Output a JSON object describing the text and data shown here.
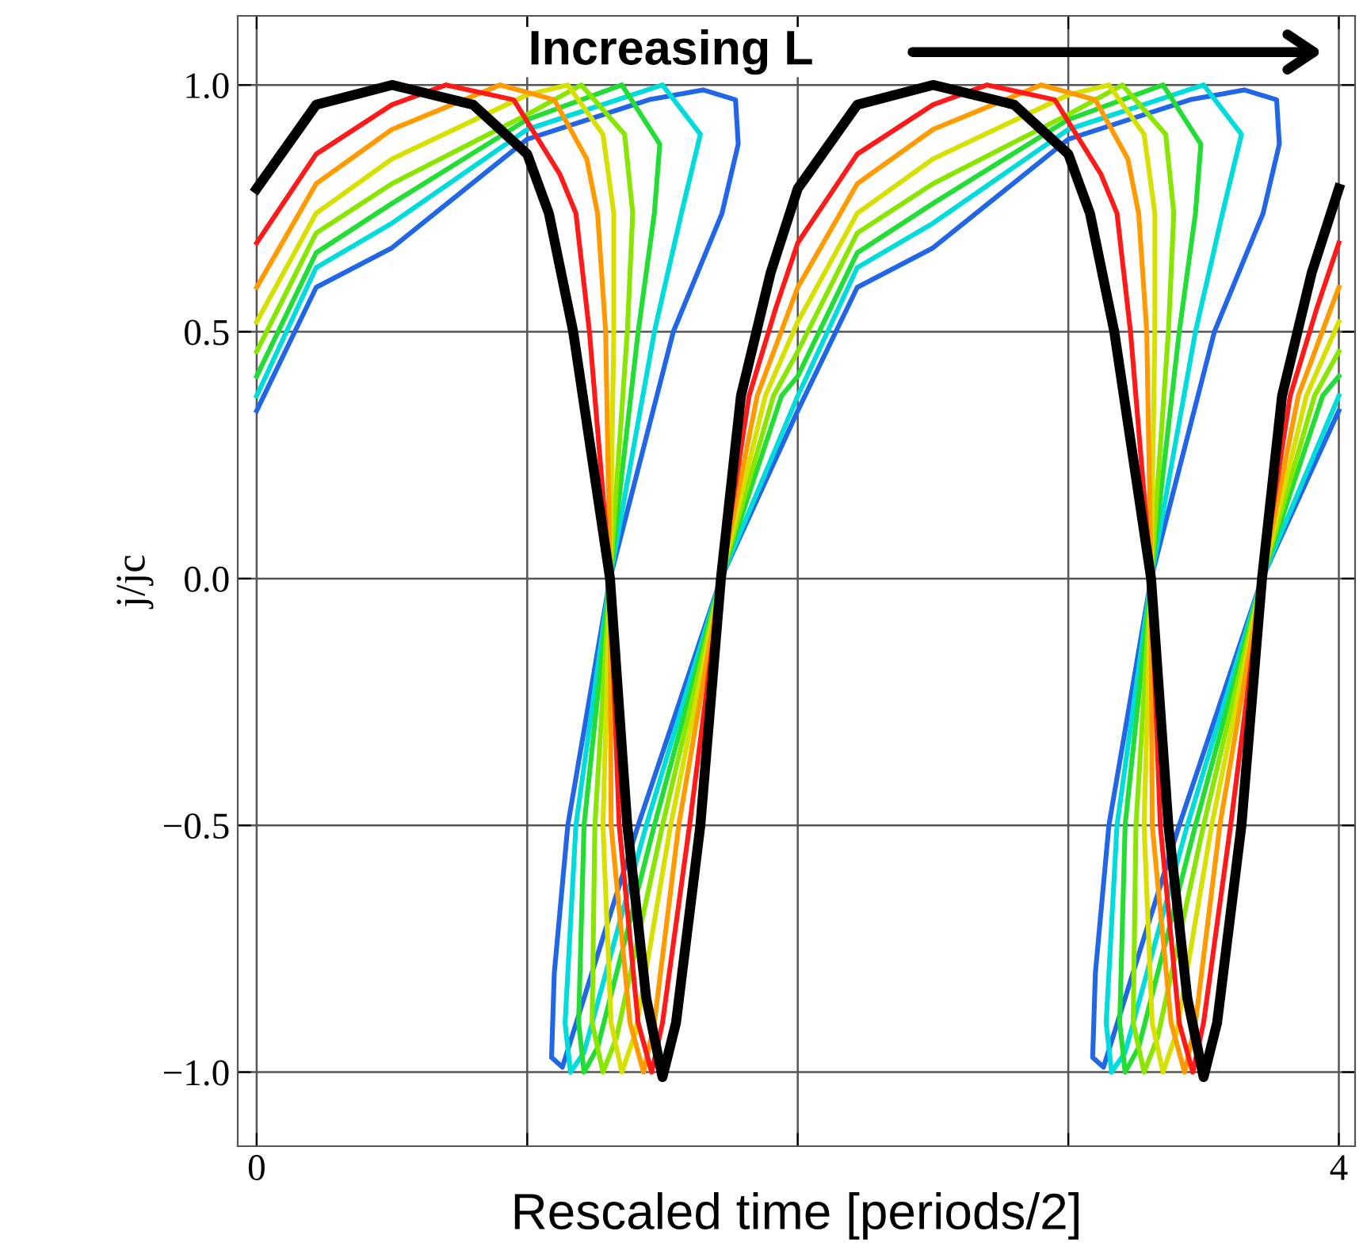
{
  "chart_data": {
    "type": "line",
    "xlabel": "Rescaled time [periods/2]",
    "ylabel": "j/jc",
    "annotations": [
      "Increasing L"
    ],
    "xlim": [
      -0.07,
      4.06
    ],
    "ylim": [
      -1.15,
      1.14
    ],
    "xticks": [
      0,
      {
        "value": 1,
        "label": null
      },
      {
        "value": 2,
        "label": null
      },
      {
        "value": 3,
        "label": null
      },
      4
    ],
    "yticks": [
      {
        "value": -1,
        "label": "−1.0"
      },
      {
        "value": -0.5,
        "label": "−0.5"
      },
      {
        "value": 0,
        "label": "0.0"
      },
      {
        "value": 0.5,
        "label": "0.5"
      },
      {
        "value": 1,
        "label": "1.0"
      }
    ],
    "grid": true,
    "legend": false,
    "series": [
      {
        "color": "#000000",
        "x": [
          0,
          0.22,
          0.5,
          0.8,
          1.0,
          1.08,
          1.17,
          1.306,
          1.37,
          1.44,
          1.5,
          1.55,
          1.64,
          1.716,
          1.79,
          1.9,
          2.0,
          2.22,
          2.5,
          2.8,
          3.0,
          3.08,
          3.17,
          3.306,
          3.37,
          3.44,
          3.5,
          3.55,
          3.64,
          3.716,
          3.79,
          3.9,
          4.0
        ],
        "values": [
          0.79,
          0.96,
          1.0,
          0.96,
          0.86,
          0.74,
          0.5,
          0,
          -0.5,
          -0.85,
          -1.01,
          -0.9,
          -0.5,
          0,
          0.37,
          0.62,
          0.79,
          0.96,
          1.0,
          0.96,
          0.86,
          0.74,
          0.5,
          0,
          -0.5,
          -0.85,
          -1.01,
          -0.9,
          -0.5,
          0,
          0.37,
          0.62,
          0.79
        ]
      },
      {
        "color": "#ff1a1a",
        "x": [
          0,
          0.22,
          0.5,
          0.7,
          0.95,
          1.12,
          1.18,
          1.23,
          1.306,
          1.34,
          1.41,
          1.46,
          1.5,
          1.6,
          1.716,
          1.82,
          1.92,
          2.0,
          2.22,
          2.5,
          2.7,
          2.95,
          3.12,
          3.18,
          3.23,
          3.306,
          3.34,
          3.41,
          3.46,
          3.5,
          3.6,
          3.716,
          3.82,
          3.92,
          4.0
        ],
        "values": [
          0.68,
          0.86,
          0.96,
          1.0,
          0.97,
          0.82,
          0.74,
          0.5,
          0,
          -0.5,
          -0.9,
          -1.0,
          -0.9,
          -0.5,
          0,
          0.37,
          0.55,
          0.68,
          0.86,
          0.96,
          1.0,
          0.97,
          0.82,
          0.74,
          0.5,
          0,
          -0.5,
          -0.9,
          -1.0,
          -0.9,
          -0.5,
          0,
          0.37,
          0.55,
          0.68
        ]
      },
      {
        "color": "#ff9a00",
        "x": [
          0,
          0.22,
          0.5,
          0.9,
          1.1,
          1.22,
          1.26,
          1.29,
          1.306,
          1.31,
          1.38,
          1.43,
          1.47,
          1.56,
          1.716,
          1.85,
          2.0,
          2.22,
          2.5,
          2.9,
          3.1,
          3.22,
          3.26,
          3.29,
          3.306,
          3.31,
          3.38,
          3.43,
          3.47,
          3.56,
          3.716,
          3.85,
          4.0
        ],
        "values": [
          0.59,
          0.8,
          0.91,
          1.0,
          0.97,
          0.85,
          0.74,
          0.5,
          0,
          -0.5,
          -0.9,
          -1.0,
          -0.9,
          -0.5,
          0,
          0.37,
          0.59,
          0.8,
          0.91,
          1.0,
          0.97,
          0.85,
          0.74,
          0.5,
          0,
          -0.5,
          -0.9,
          -1.0,
          -0.9,
          -0.5,
          0,
          0.37,
          0.59
        ]
      },
      {
        "color": "#d8e000",
        "x": [
          0,
          0.22,
          0.5,
          1.0,
          1.15,
          1.28,
          1.32,
          1.32,
          1.306,
          1.28,
          1.31,
          1.35,
          1.4,
          1.53,
          1.716,
          1.88,
          2.0,
          2.22,
          2.5,
          3.0,
          3.15,
          3.28,
          3.32,
          3.32,
          3.306,
          3.28,
          3.31,
          3.35,
          3.4,
          3.53,
          3.716,
          3.88,
          4.0
        ],
        "values": [
          0.52,
          0.74,
          0.85,
          0.98,
          1.0,
          0.9,
          0.74,
          0.5,
          0,
          -0.5,
          -0.9,
          -1.0,
          -0.92,
          -0.5,
          0,
          0.37,
          0.52,
          0.74,
          0.85,
          0.98,
          1.0,
          0.9,
          0.74,
          0.5,
          0,
          -0.5,
          -0.9,
          -1.0,
          -0.92,
          -0.5,
          0,
          0.37,
          0.52
        ]
      },
      {
        "color": "#88e600",
        "x": [
          0,
          0.22,
          0.5,
          1.0,
          1.2,
          1.36,
          1.39,
          1.37,
          1.306,
          1.25,
          1.24,
          1.28,
          1.33,
          1.5,
          1.716,
          1.91,
          2.0,
          2.22,
          2.5,
          3.0,
          3.2,
          3.36,
          3.39,
          3.37,
          3.306,
          3.25,
          3.24,
          3.28,
          3.33,
          3.5,
          3.716,
          3.91,
          4.0
        ],
        "values": [
          0.46,
          0.7,
          0.8,
          0.94,
          1.0,
          0.9,
          0.74,
          0.5,
          0,
          -0.5,
          -0.9,
          -1.0,
          -0.93,
          -0.5,
          0,
          0.37,
          0.46,
          0.7,
          0.8,
          0.94,
          1.0,
          0.9,
          0.74,
          0.5,
          0,
          -0.5,
          -0.9,
          -1.0,
          -0.93,
          -0.5,
          0,
          0.37,
          0.46
        ]
      },
      {
        "color": "#22dd33",
        "x": [
          0,
          0.22,
          0.5,
          1.0,
          1.35,
          1.49,
          1.47,
          1.41,
          1.306,
          1.21,
          1.19,
          1.21,
          1.26,
          1.47,
          1.716,
          1.94,
          2.0,
          2.22,
          2.5,
          3.0,
          3.35,
          3.49,
          3.47,
          3.41,
          3.306,
          3.21,
          3.19,
          3.21,
          3.26,
          3.47,
          3.716,
          3.94,
          4.0
        ],
        "values": [
          0.41,
          0.66,
          0.76,
          0.93,
          1.0,
          0.88,
          0.74,
          0.5,
          0,
          -0.5,
          -0.9,
          -1.0,
          -0.95,
          -0.5,
          0,
          0.37,
          0.41,
          0.66,
          0.76,
          0.93,
          1.0,
          0.88,
          0.74,
          0.5,
          0,
          -0.5,
          -0.9,
          -1.0,
          -0.95,
          -0.5,
          0,
          0.37,
          0.41
        ]
      },
      {
        "color": "#00dcdc",
        "x": [
          0,
          0.22,
          0.5,
          1.0,
          1.5,
          1.64,
          1.57,
          1.47,
          1.306,
          1.18,
          1.14,
          1.16,
          1.21,
          1.44,
          1.716,
          2.0,
          2.22,
          2.5,
          3.0,
          3.5,
          3.64,
          3.57,
          3.47,
          3.306,
          3.18,
          3.14,
          3.16,
          3.21,
          3.44,
          3.716,
          4.0
        ],
        "values": [
          0.37,
          0.63,
          0.72,
          0.91,
          1.0,
          0.9,
          0.74,
          0.5,
          0,
          -0.5,
          -0.9,
          -1.0,
          -0.96,
          -0.5,
          0,
          0.37,
          0.63,
          0.72,
          0.91,
          1.0,
          0.9,
          0.74,
          0.5,
          0,
          -0.5,
          -0.9,
          -1.0,
          -0.96,
          -0.5,
          0,
          0.37
        ]
      },
      {
        "color": "#2266e8",
        "x": [
          0,
          0.22,
          0.5,
          1.0,
          1.45,
          1.65,
          1.77,
          1.78,
          1.72,
          1.54,
          1.306,
          1.15,
          1.1,
          1.09,
          1.13,
          1.41,
          1.716,
          2.0,
          2.22,
          2.5,
          3.0,
          3.45,
          3.65,
          3.77,
          3.78,
          3.72,
          3.54,
          3.306,
          3.15,
          3.1,
          3.09,
          3.13,
          3.41,
          3.716,
          4.0
        ],
        "values": [
          0.34,
          0.59,
          0.67,
          0.89,
          0.97,
          0.99,
          0.97,
          0.88,
          0.74,
          0.5,
          0,
          -0.5,
          -0.8,
          -0.97,
          -0.99,
          -0.5,
          0,
          0.34,
          0.59,
          0.67,
          0.89,
          0.97,
          0.99,
          0.97,
          0.88,
          0.74,
          0.5,
          0,
          -0.5,
          -0.8,
          -0.97,
          -0.99,
          -0.5,
          0,
          0.34
        ]
      }
    ]
  }
}
